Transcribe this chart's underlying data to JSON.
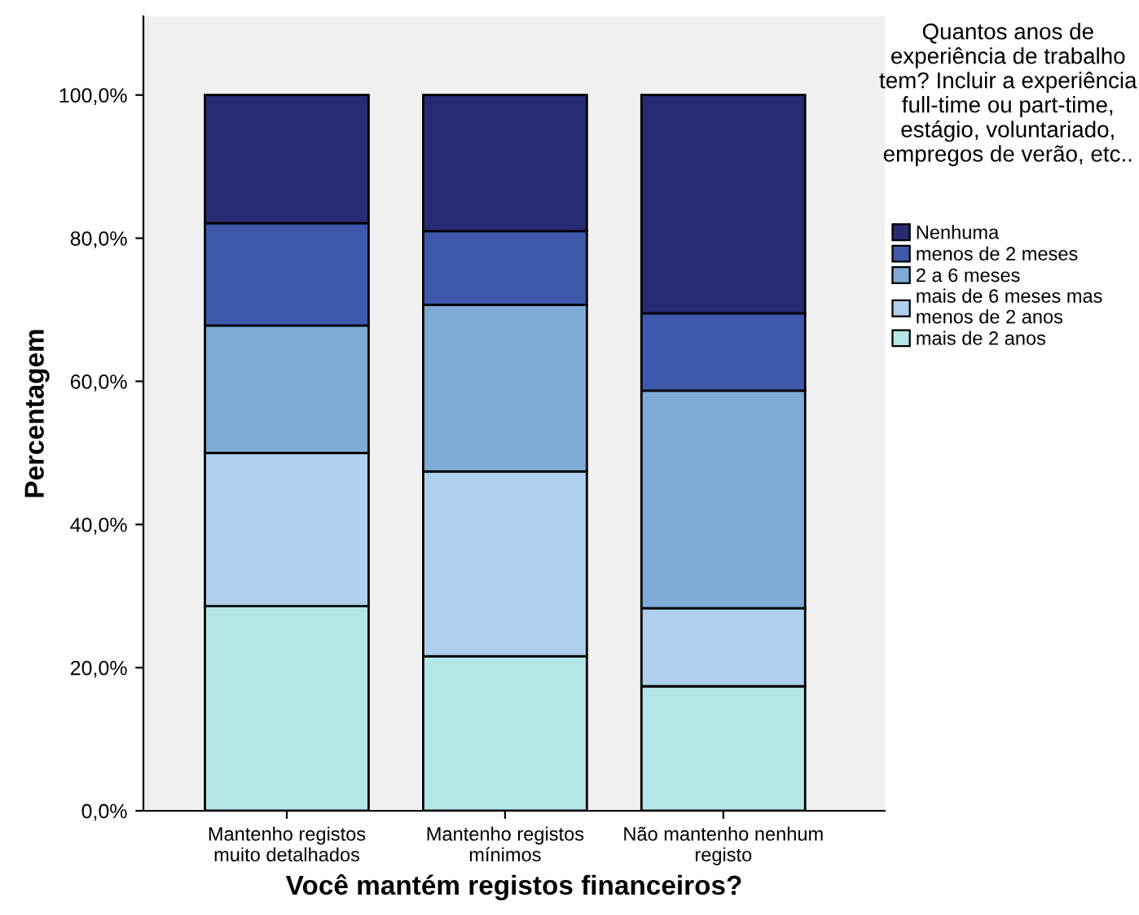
{
  "chart_data": {
    "type": "bar",
    "stacked": true,
    "xlabel": "Você mantém registos financeiros?",
    "ylabel": "Percentagem",
    "legend_title": "Quantos anos de experiência de trabalho tem? Incluir a experiência full-time ou part-time, estágio, voluntariado, empregos de verão, etc..",
    "categories": [
      "Mantenho registos muito detalhados",
      "Mantenho registos mínimos",
      "Não mantenho nenhum registo"
    ],
    "series": [
      {
        "name": "mais de 2 anos",
        "color": "#b4e6e6",
        "values": [
          28.6,
          21.6,
          17.4
        ]
      },
      {
        "name": "mais de 6 meses mas menos de 2 anos",
        "color": "#aecfed",
        "values": [
          21.4,
          25.8,
          10.9
        ]
      },
      {
        "name": "2 a 6 meses",
        "color": "#7eaad6",
        "values": [
          17.8,
          23.3,
          30.4
        ]
      },
      {
        "name": "menos de 2 meses",
        "color": "#3e58ab",
        "values": [
          14.3,
          10.3,
          10.8
        ]
      },
      {
        "name": "Nenhuma",
        "color": "#282a72",
        "values": [
          17.9,
          19.0,
          30.5
        ]
      }
    ],
    "ylim": [
      0,
      111
    ],
    "yticks": [
      {
        "value": 0,
        "label": "0,0%"
      },
      {
        "value": 20,
        "label": "20,0%"
      },
      {
        "value": 40,
        "label": "40,0%"
      },
      {
        "value": 60,
        "label": "60,0%"
      },
      {
        "value": 80,
        "label": "80,0%"
      },
      {
        "value": 100,
        "label": "100,0%"
      }
    ],
    "grid": false,
    "legend": "right"
  }
}
